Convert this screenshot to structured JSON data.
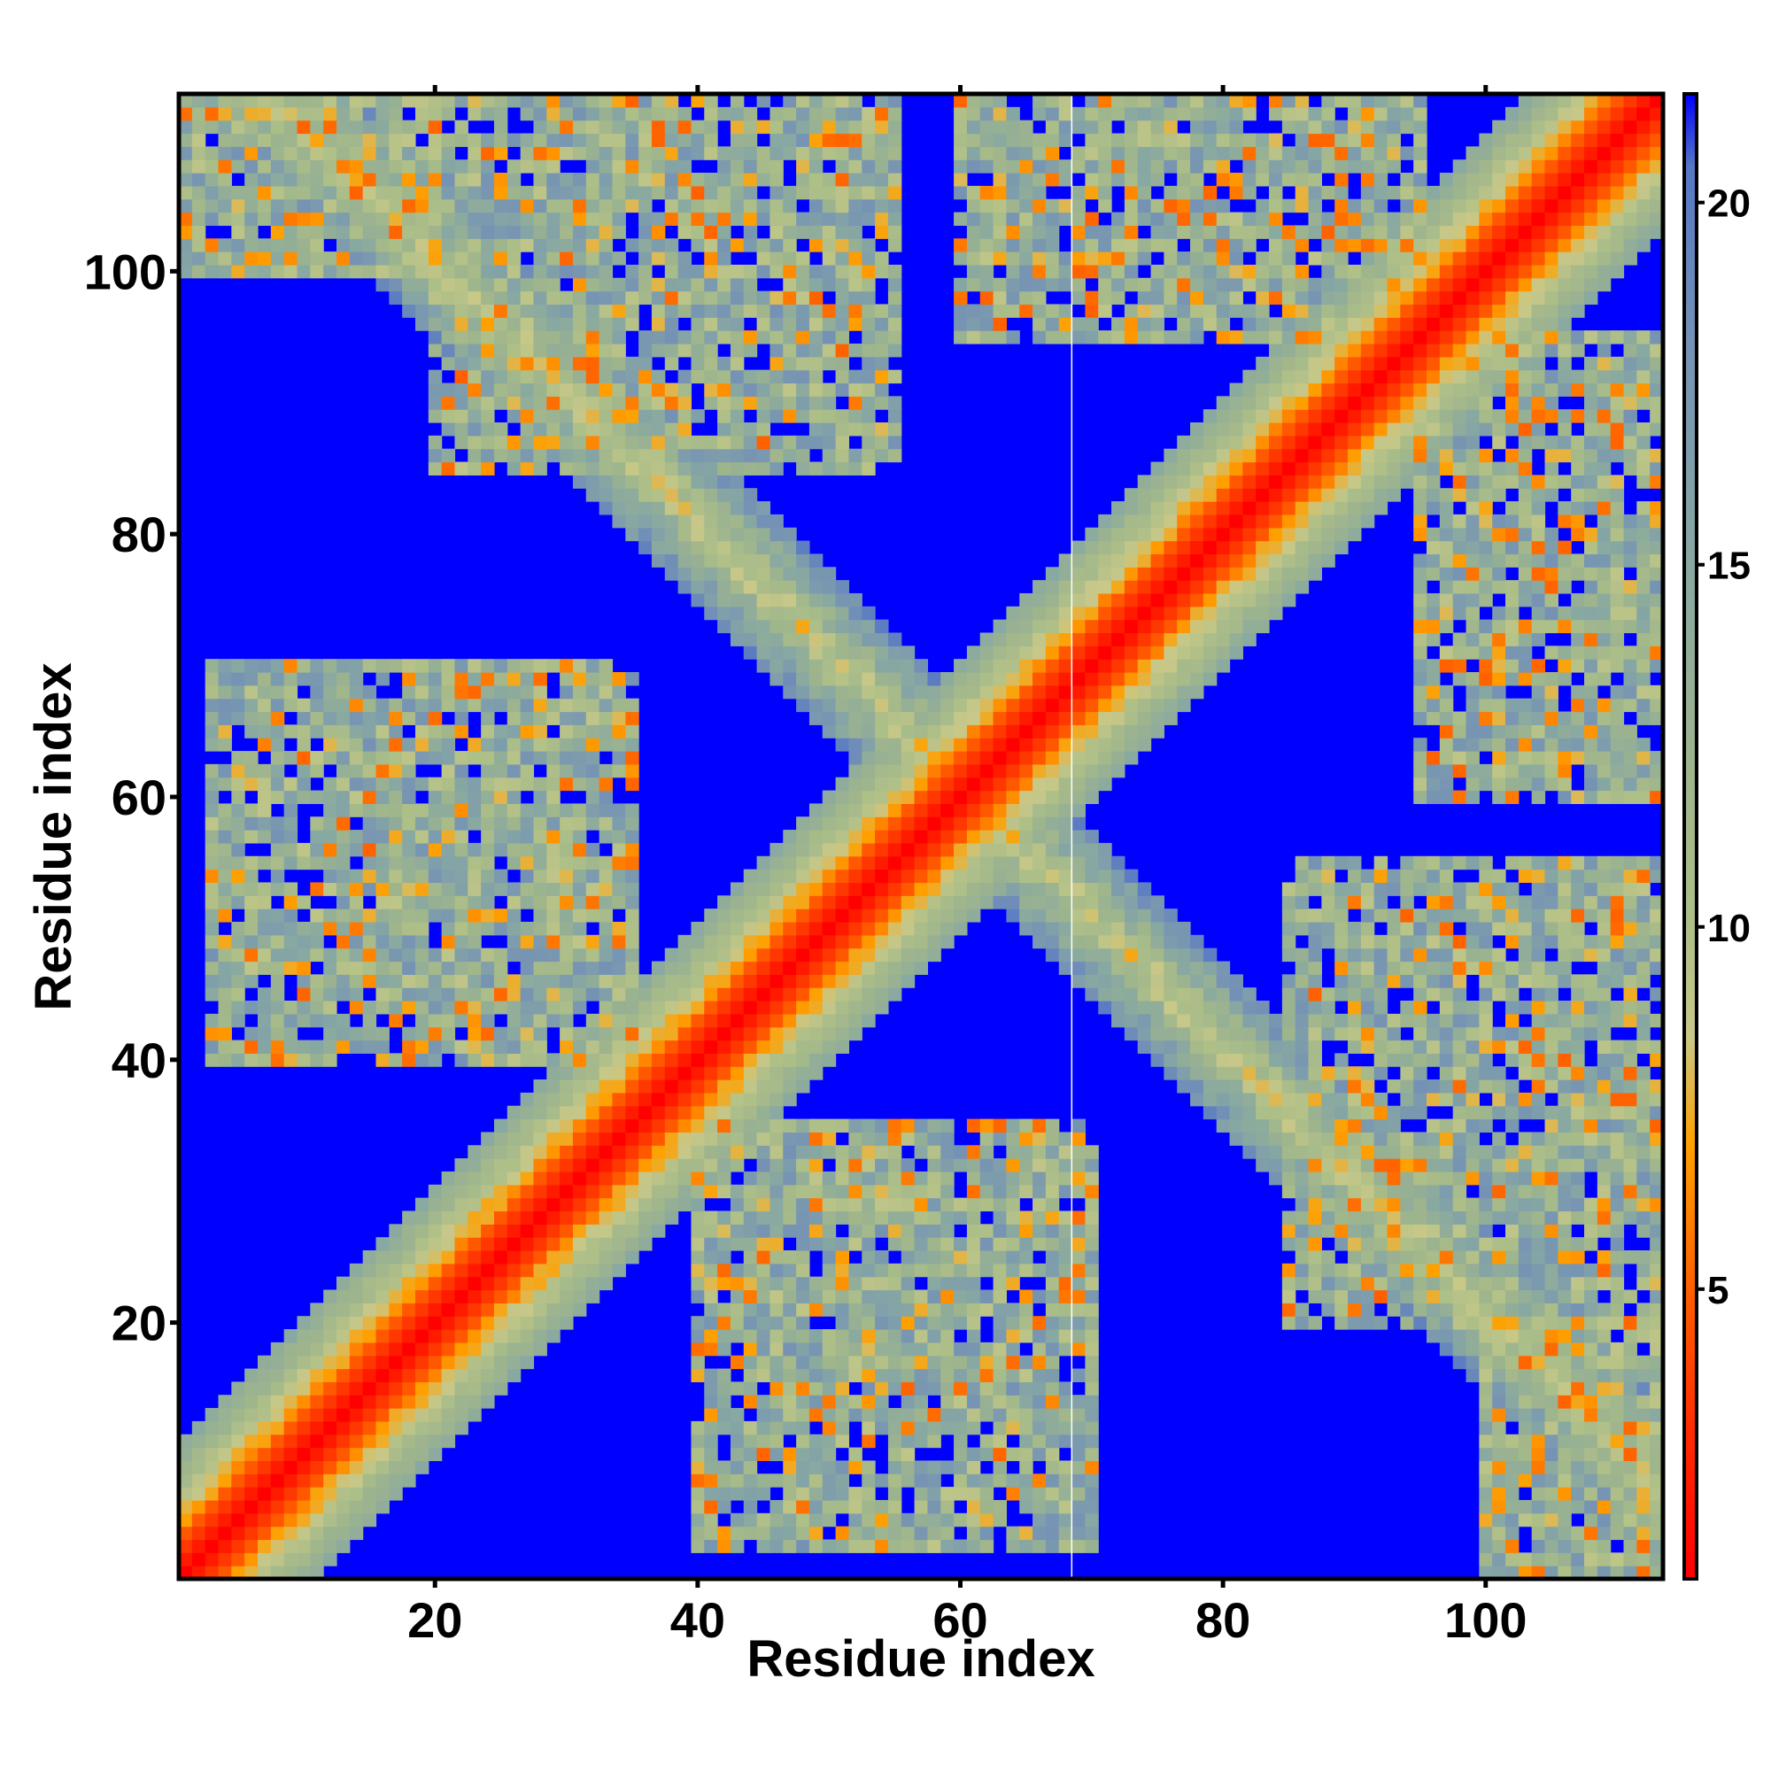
{
  "chart_data": {
    "type": "heatmap",
    "title": "",
    "xlabel": "Residue index",
    "ylabel": "Residue index",
    "xlim": [
      1,
      113
    ],
    "ylim": [
      1,
      113
    ],
    "x_ticks": [
      20,
      40,
      60,
      80,
      100
    ],
    "y_ticks": [
      20,
      40,
      60,
      80,
      100
    ],
    "n_residues": 113,
    "value_description": "pairwise residue distance (contact map); red = close, blue = far",
    "colorbar": {
      "range": [
        1,
        21.5
      ],
      "ticks": [
        5,
        10,
        15,
        20
      ],
      "stops": [
        {
          "value": 1,
          "color": "#ff0000"
        },
        {
          "value": 3,
          "color": "#ff2a00"
        },
        {
          "value": 5,
          "color": "#ff5f00"
        },
        {
          "value": 7,
          "color": "#ffa000"
        },
        {
          "value": 8.5,
          "color": "#c8c888"
        },
        {
          "value": 10,
          "color": "#aebf88"
        },
        {
          "value": 12,
          "color": "#9fb58c"
        },
        {
          "value": 15,
          "color": "#88a8a2"
        },
        {
          "value": 18,
          "color": "#7592b5"
        },
        {
          "value": 20.5,
          "color": "#5577c5"
        },
        {
          "value": 21.5,
          "color": "#0000ff"
        }
      ],
      "colormap": [
        "#ff0000",
        "#ff5f00",
        "#ffa000",
        "#aebf88",
        "#88a8a2",
        "#5577c5"
      ],
      "background": "#0000ff"
    },
    "structure": {
      "main_diagonal": {
        "from": 1,
        "to": 113
      },
      "antidiagonal_segments": [
        [
          1,
          60
        ],
        [
          35,
          95
        ],
        [
          55,
          113
        ]
      ],
      "off_diagonal_bands": [
        {
          "i": [
            3,
            35
          ],
          "j": [
            40,
            70
          ]
        },
        {
          "i": [
            20,
            55
          ],
          "j": [
            85,
            113
          ]
        },
        {
          "i": [
            60,
            95
          ],
          "j": [
            95,
            113
          ]
        },
        {
          "i": [
            1,
            20
          ],
          "j": [
            100,
            113
          ]
        }
      ],
      "gap_column": 69
    }
  }
}
